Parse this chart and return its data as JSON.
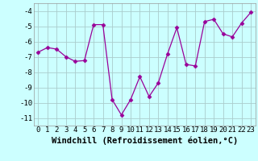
{
  "x": [
    0,
    1,
    2,
    3,
    4,
    5,
    6,
    7,
    8,
    9,
    10,
    11,
    12,
    13,
    14,
    15,
    16,
    17,
    18,
    19,
    20,
    21,
    22,
    23
  ],
  "y": [
    -6.7,
    -6.4,
    -6.5,
    -7.0,
    -7.3,
    -7.25,
    -4.9,
    -4.9,
    -9.8,
    -10.8,
    -9.8,
    -8.3,
    -9.6,
    -8.7,
    -6.8,
    -5.1,
    -7.5,
    -7.6,
    -4.7,
    -4.55,
    -5.5,
    -5.7,
    -4.8,
    -4.1
  ],
  "line_color": "#990099",
  "marker": "D",
  "markersize": 2.5,
  "linewidth": 0.9,
  "bg_color": "#ccffff",
  "grid_color": "#aacccc",
  "xlabel": "Windchill (Refroidissement éolien,°C)",
  "ylim": [
    -11.5,
    -3.5
  ],
  "yticks": [
    -11,
    -10,
    -9,
    -8,
    -7,
    -6,
    -5,
    -4
  ],
  "xlim": [
    -0.5,
    23.5
  ],
  "xticks": [
    0,
    1,
    2,
    3,
    4,
    5,
    6,
    7,
    8,
    9,
    10,
    11,
    12,
    13,
    14,
    15,
    16,
    17,
    18,
    19,
    20,
    21,
    22,
    23
  ],
  "xlabel_fontsize": 7.5,
  "tick_fontsize": 6.5
}
